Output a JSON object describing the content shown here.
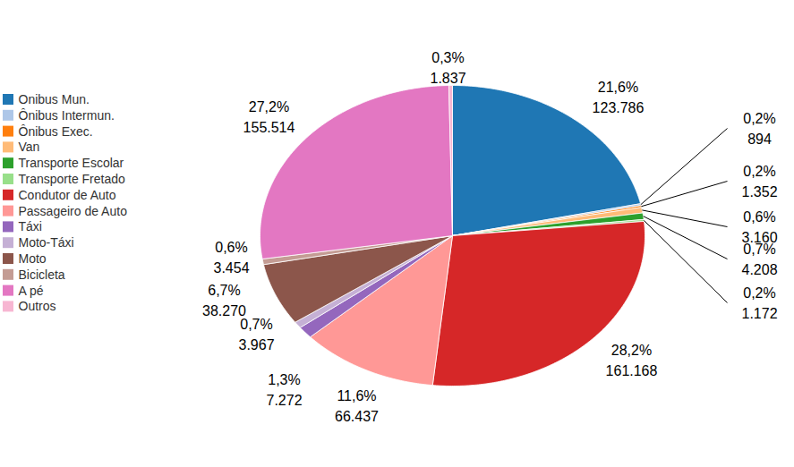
{
  "chart_data": {
    "type": "pie",
    "categories": [
      "Onibus Mun.",
      "Ônibus Intermun.",
      "Ônibus Exec.",
      "Van",
      "Transporte Escolar",
      "Transporte Fretado",
      "Condutor de Auto",
      "Passageiro de Auto",
      "Táxi",
      "Moto-Táxi",
      "Moto",
      "Bicicleta",
      "A pé",
      "Outros"
    ],
    "values": [
      21.6,
      0.2,
      0.2,
      0.6,
      0.7,
      0.2,
      28.2,
      11.6,
      1.3,
      0.7,
      6.7,
      0.6,
      27.2,
      0.3
    ],
    "value_labels": [
      "21,6%",
      "0,2%",
      "0,2%",
      "0,6%",
      "0,7%",
      "0,2%",
      "28,2%",
      "11,6%",
      "1,3%",
      "0,7%",
      "6,7%",
      "0,6%",
      "27,2%",
      "0,3%"
    ],
    "counts": [
      123786,
      894,
      1352,
      3160,
      4208,
      1172,
      161168,
      66437,
      7272,
      3967,
      38270,
      3454,
      155514,
      1837
    ],
    "count_labels": [
      "123.786",
      "894",
      "1.352",
      "3.160",
      "4.208",
      "1.172",
      "161.168",
      "66.437",
      "7.272",
      "3.967",
      "38.270",
      "3.454",
      "155.514",
      "1.837"
    ],
    "colors": [
      "#1f77b4",
      "#aec7e8",
      "#ff7f0e",
      "#ffbb78",
      "#2ca02c",
      "#98df8a",
      "#d62728",
      "#ff9896",
      "#9467bd",
      "#c5b0d5",
      "#8c564b",
      "#c49c94",
      "#e377c2",
      "#f7b6d2"
    ],
    "legend": "left",
    "data_labels": true
  }
}
